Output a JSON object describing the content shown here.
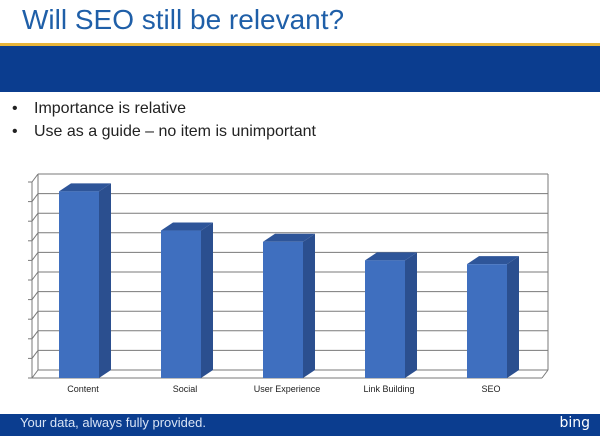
{
  "slide": {
    "title": "Will SEO still be relevant?",
    "bullets": [
      "Importance is relative",
      "Use as a guide – no item is unimportant"
    ]
  },
  "footer": {
    "tagline": "Your data, always fully provided.",
    "logo": "bing"
  },
  "colors": {
    "title": "#1f5fa8",
    "band": "#0b3d8f",
    "accent_line": "#e8b53a",
    "bar_front": "#3f6fbf",
    "bar_side": "#2b4f8f",
    "bar_top": "#2e5599"
  },
  "chart_data": {
    "type": "bar",
    "style": "3d-column",
    "categories": [
      "Content",
      "Social",
      "User Experience",
      "Link Building",
      "SEO"
    ],
    "values": [
      10,
      7.9,
      7.3,
      6.3,
      6.1
    ],
    "ylim": [
      0,
      10.5
    ],
    "y_tick_labels_shown": false,
    "grid": true,
    "legend": "none"
  }
}
